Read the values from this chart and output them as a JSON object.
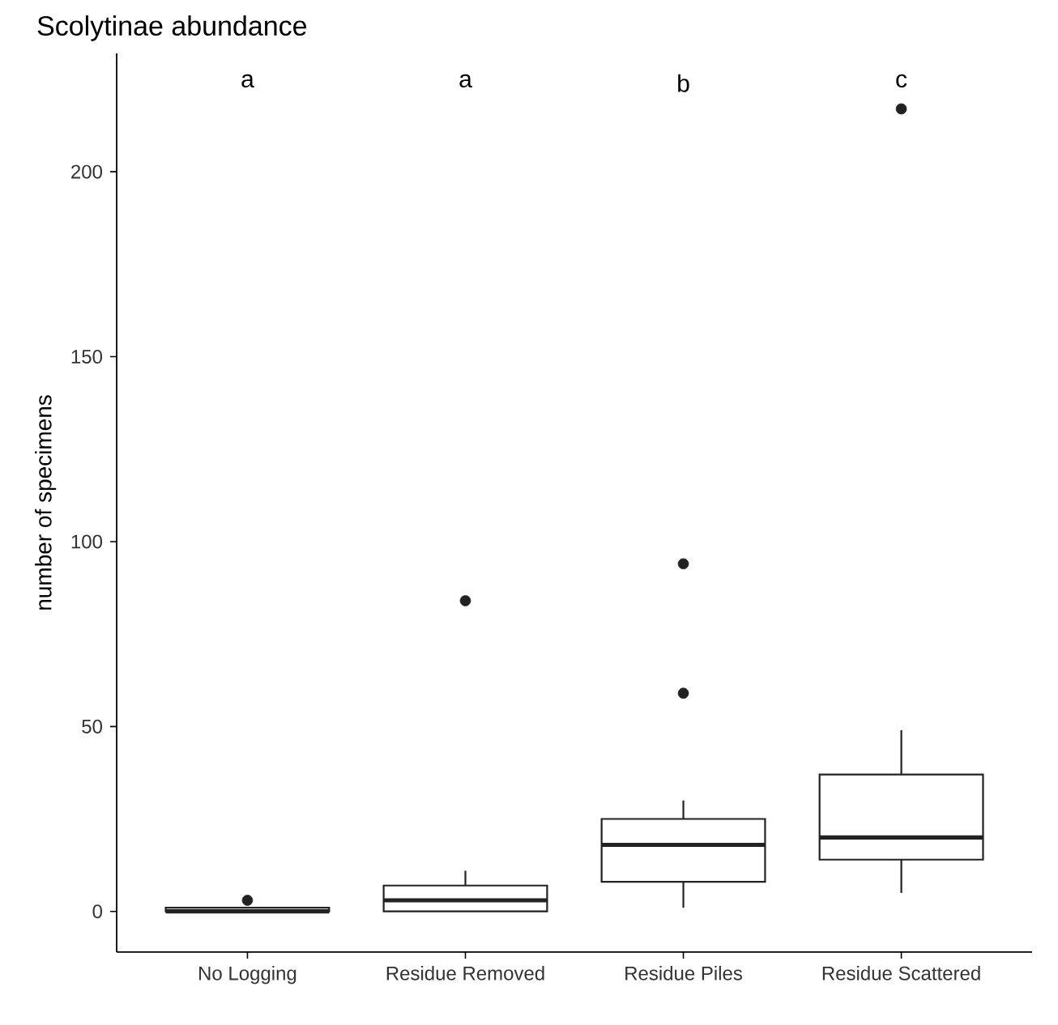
{
  "chart_data": {
    "type": "box",
    "title": "Scolytinae abundance",
    "ylabel": "number of specimens",
    "categories": [
      "No Logging",
      "Residue Removed",
      "Residue Piles",
      "Residue Scattered"
    ],
    "boxes": [
      {
        "low": 0,
        "q1": 0,
        "median": 0,
        "q3": 1,
        "high": 1,
        "outliers": [
          3
        ]
      },
      {
        "low": 0,
        "q1": 0,
        "median": 3,
        "q3": 7,
        "high": 11,
        "outliers": [
          84
        ]
      },
      {
        "low": 1,
        "q1": 8,
        "median": 18,
        "q3": 25,
        "high": 30,
        "outliers": [
          59,
          94
        ]
      },
      {
        "low": 5,
        "q1": 14,
        "median": 20,
        "q3": 37,
        "high": 49,
        "outliers": [
          217
        ]
      }
    ],
    "color": "#222222",
    "ylim": [
      -11,
      232
    ],
    "yticks": [
      0,
      50,
      100,
      150,
      200
    ],
    "grid": false,
    "annotations": [
      "a",
      "a",
      "b",
      "c"
    ]
  }
}
